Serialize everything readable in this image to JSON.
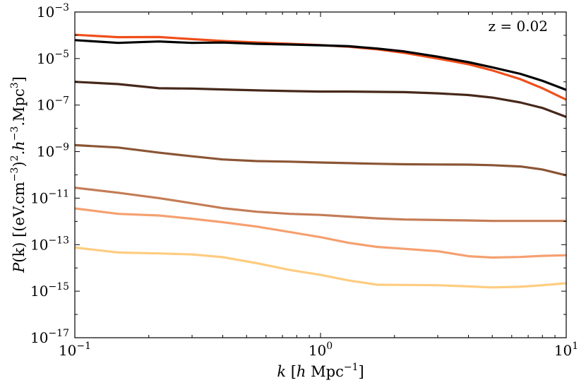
{
  "chart_data": {
    "type": "line",
    "title": "",
    "xlabel_parts": {
      "k": "k",
      "bracket_open": " [",
      "h": "h",
      "unit": " Mpc",
      "exp": "−1",
      "bracket_close": "]"
    },
    "ylabel_parts": {
      "P": "P",
      "k_arg": "(k)",
      "a": " [(eV.cm",
      "exp1": "−3",
      "b": ")",
      "exp2": "2",
      "c": ".",
      "h": "h",
      "exp3": "−3",
      "d": ".Mpc",
      "exp4": "3",
      "e": "]"
    },
    "x_scale": "log",
    "y_scale": "log",
    "xlim": [
      0.1,
      10
    ],
    "ylim": [
      1e-17,
      0.001
    ],
    "x_ticks": [
      {
        "base": "10",
        "exp": "−1",
        "value": 0.1
      },
      {
        "base": "10",
        "exp": "0",
        "value": 1
      },
      {
        "base": "10",
        "exp": "1",
        "value": 10
      }
    ],
    "y_ticks": [
      {
        "base": "10",
        "exp": "−3",
        "value": 0.001
      },
      {
        "base": "10",
        "exp": "−5",
        "value": 1e-05
      },
      {
        "base": "10",
        "exp": "−7",
        "value": 1e-07
      },
      {
        "base": "10",
        "exp": "−9",
        "value": 1e-09
      },
      {
        "base": "10",
        "exp": "−11",
        "value": 1e-11
      },
      {
        "base": "10",
        "exp": "−13",
        "value": 1e-13
      },
      {
        "base": "10",
        "exp": "−15",
        "value": 1e-15
      },
      {
        "base": "10",
        "exp": "−17",
        "value": 1e-17
      }
    ],
    "annotation": "z = 0.02",
    "annotation_position": "top-right",
    "grid": false,
    "legend": "none",
    "series": [
      {
        "color": "#ffcc80",
        "x": [
          0.1,
          0.15,
          0.22,
          0.3,
          0.4,
          0.55,
          0.75,
          1.0,
          1.3,
          1.7,
          2.2,
          3.0,
          4.0,
          5.0,
          6.5,
          8.0,
          10.0
        ],
        "y": [
          7.5e-14,
          4.6e-14,
          4.2e-14,
          3.8e-14,
          2.9e-14,
          1.6e-14,
          8.2e-15,
          5e-15,
          2.9e-15,
          1.9e-15,
          1.85e-15,
          1.8e-15,
          1.6e-15,
          1.45e-15,
          1.55e-15,
          1.8e-15,
          2.2e-15
        ]
      },
      {
        "color": "#f5a070",
        "x": [
          0.1,
          0.15,
          0.22,
          0.3,
          0.4,
          0.55,
          0.75,
          1.0,
          1.3,
          1.7,
          2.2,
          3.0,
          4.0,
          5.0,
          6.5,
          8.0,
          10.0
        ],
        "y": [
          3.6e-12,
          2.1e-12,
          1.8e-12,
          1.3e-12,
          9.2e-13,
          6e-13,
          3.5e-13,
          2.1e-13,
          1.2e-13,
          8e-14,
          6.6e-14,
          5.2e-14,
          3.2e-14,
          2.8e-14,
          2.95e-14,
          3.3e-14,
          3.5e-14
        ]
      },
      {
        "color": "#c47c56",
        "x": [
          0.1,
          0.15,
          0.22,
          0.3,
          0.4,
          0.55,
          0.75,
          1.0,
          1.3,
          1.7,
          2.2,
          3.0,
          4.0,
          5.0,
          6.5,
          8.0,
          10.0
        ],
        "y": [
          2.8e-11,
          1.7e-11,
          1e-11,
          6e-12,
          3.7e-12,
          2.6e-12,
          2.1e-12,
          1.9e-12,
          1.6e-12,
          1.35e-12,
          1.2e-12,
          1.15e-12,
          1.1e-12,
          1.05e-12,
          1.05e-12,
          1.05e-12,
          1.05e-12
        ]
      },
      {
        "color": "#8b5535",
        "x": [
          0.1,
          0.15,
          0.22,
          0.3,
          0.4,
          0.55,
          0.75,
          1.0,
          1.3,
          1.7,
          2.2,
          3.0,
          4.0,
          5.0,
          6.5,
          8.0,
          10.0
        ],
        "y": [
          1.9e-09,
          1.5e-09,
          9e-10,
          6.3e-10,
          4.6e-10,
          3.9e-10,
          3.7e-10,
          3.4e-10,
          3.2e-10,
          3e-10,
          2.85e-10,
          2.8e-10,
          2.75e-10,
          2.6e-10,
          2.3e-10,
          1.7e-10,
          9.5e-11
        ]
      },
      {
        "color": "#46281a",
        "x": [
          0.1,
          0.15,
          0.22,
          0.3,
          0.4,
          0.55,
          0.75,
          1.0,
          1.3,
          1.7,
          2.2,
          3.0,
          4.0,
          5.0,
          6.5,
          8.0,
          10.0
        ],
        "y": [
          1e-06,
          8e-07,
          5.3e-07,
          5.1e-07,
          4.7e-07,
          4.3e-07,
          4e-07,
          3.8e-07,
          3.8e-07,
          3.7e-07,
          3.6e-07,
          3.2e-07,
          2.7e-07,
          2.1e-07,
          1.3e-07,
          7.5e-08,
          3.1e-08
        ]
      },
      {
        "color": "#f04e1a",
        "x": [
          0.1,
          0.15,
          0.22,
          0.3,
          0.4,
          0.55,
          0.75,
          1.0,
          1.3,
          1.7,
          2.2,
          3.0,
          4.0,
          5.0,
          6.5,
          8.0,
          10.0
        ],
        "y": [
          0.000105,
          8.3e-05,
          8.4e-05,
          6.8e-05,
          5.7e-05,
          4.9e-05,
          4.3e-05,
          3.8e-05,
          3.2e-05,
          2.5e-05,
          1.75e-05,
          1e-05,
          5.7e-06,
          3.1e-06,
          1.3e-06,
          5.3e-07,
          1.7e-07
        ]
      },
      {
        "color": "#000000",
        "x": [
          0.1,
          0.15,
          0.22,
          0.3,
          0.4,
          0.55,
          0.75,
          1.0,
          1.3,
          1.7,
          2.2,
          3.0,
          4.0,
          5.0,
          6.5,
          8.0,
          10.0
        ],
        "y": [
          6.2e-05,
          4.7e-05,
          5.4e-05,
          4.7e-05,
          4.9e-05,
          4.3e-05,
          4e-05,
          3.7e-05,
          3.4e-05,
          2.7e-05,
          2e-05,
          1.2e-05,
          7e-06,
          4.2e-06,
          2.2e-06,
          1.1e-06,
          4.5e-07
        ]
      }
    ]
  }
}
